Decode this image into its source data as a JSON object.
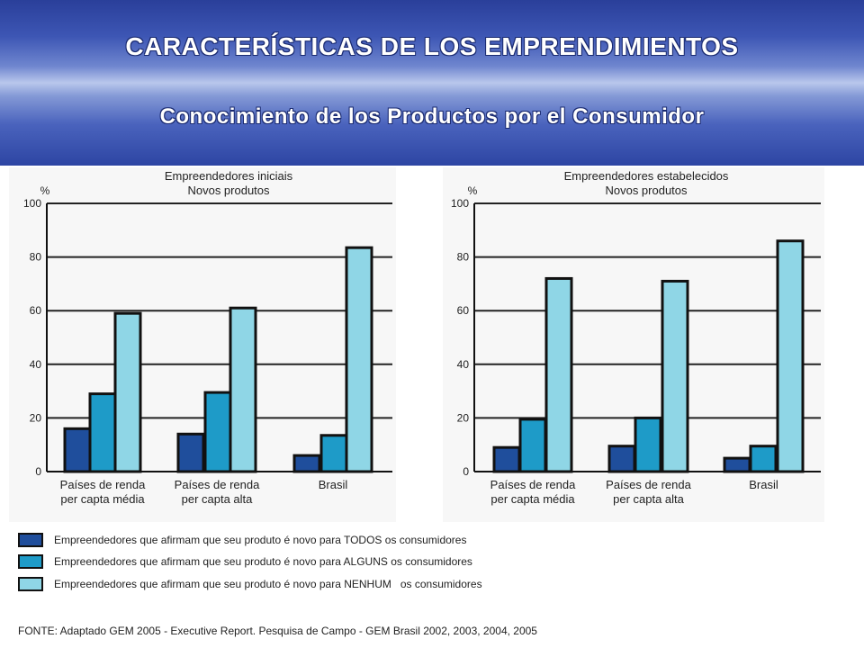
{
  "header": {
    "title": "CARACTERÍSTICAS DE LOS EMPRENDIMIENTOS",
    "subtitle": "Conocimiento de los Productos por el Consumidor"
  },
  "colors": {
    "todos": "#1f4e9c",
    "alguns": "#1e9bc8",
    "nenhum": "#8fd6e6",
    "axis": "#111111",
    "grid": "#222222"
  },
  "chart_data": [
    {
      "type": "bar",
      "title": "Empreendedores iniciais",
      "subtitle": "Novos produtos",
      "ylabel": "%",
      "ylim": [
        0,
        100
      ],
      "yticks": [
        0,
        20,
        40,
        60,
        80,
        100
      ],
      "grid": true,
      "categories": [
        [
          "Países de renda",
          "per capta média"
        ],
        [
          "Países de renda",
          "per capta alta"
        ],
        [
          "Brasil"
        ]
      ],
      "series": [
        {
          "name": "Empreendedores que afirmam que seu produto é novo para TODOS  os consumidores",
          "values": [
            16,
            14,
            6
          ]
        },
        {
          "name": "Empreendedores que afirmam que seu produto é novo para ALGUNS  os consumidores",
          "values": [
            29,
            29.5,
            13.5
          ]
        },
        {
          "name": "Empreendedores que afirmam que seu produto é novo para NENHUM  os consumidores",
          "values": [
            59,
            61,
            83.5
          ]
        }
      ]
    },
    {
      "type": "bar",
      "title": "Empreendedores estabelecidos",
      "subtitle": "Novos produtos",
      "ylabel": "%",
      "ylim": [
        0,
        100
      ],
      "yticks": [
        0,
        20,
        40,
        60,
        80,
        100
      ],
      "grid": true,
      "categories": [
        [
          "Países de renda",
          "per capta média"
        ],
        [
          "Países de renda",
          "per capta alta"
        ],
        [
          "Brasil"
        ]
      ],
      "series": [
        {
          "name": "Empreendedores que afirmam que seu produto é novo para TODOS  os consumidores",
          "values": [
            9,
            9.5,
            5
          ]
        },
        {
          "name": "Empreendedores que afirmam que seu produto é novo para ALGUNS  os consumidores",
          "values": [
            19.5,
            20,
            9.5
          ]
        },
        {
          "name": "Empreendedores que afirmam que seu produto é novo para NENHUM  os consumidores",
          "values": [
            72,
            71,
            86
          ]
        }
      ]
    }
  ],
  "legend": [
    "Empreendedores que afirmam que seu produto é novo para TODOS  os consumidores",
    "Empreendedores que afirmam que seu produto é novo para ALGUNS  os consumidores",
    "Empreendedores que afirmam que seu produto é novo para NENHUM   os consumidores"
  ],
  "source": "FONTE: Adaptado GEM 2005 - Executive Report. Pesquisa de Campo - GEM Brasil 2002, 2003, 2004, 2005"
}
